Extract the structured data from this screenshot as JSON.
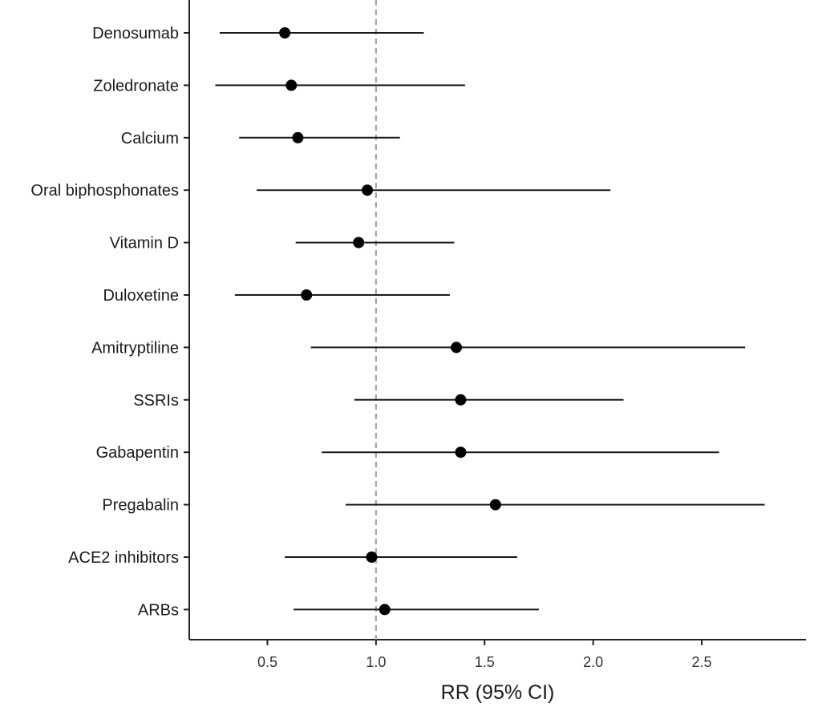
{
  "chart_data": {
    "type": "forest",
    "title": "",
    "xlabel": "RR (95% CI)",
    "ylabel": "",
    "xlim": [
      0.14,
      2.98
    ],
    "xticks": [
      0.5,
      1.0,
      1.5,
      2.0,
      2.5
    ],
    "xtick_labels": [
      "0.5",
      "1.0",
      "1.5",
      "2.0",
      "2.5"
    ],
    "reference_line": 1.0,
    "rows": [
      {
        "label": "Denosumab",
        "estimate": 0.58,
        "lower": 0.28,
        "upper": 1.22
      },
      {
        "label": "Zoledronate",
        "estimate": 0.61,
        "lower": 0.26,
        "upper": 1.41
      },
      {
        "label": "Calcium",
        "estimate": 0.64,
        "lower": 0.37,
        "upper": 1.11
      },
      {
        "label": "Oral biphosphonates",
        "estimate": 0.96,
        "lower": 0.45,
        "upper": 2.08
      },
      {
        "label": "Vitamin D",
        "estimate": 0.92,
        "lower": 0.63,
        "upper": 1.36
      },
      {
        "label": "Duloxetine",
        "estimate": 0.68,
        "lower": 0.35,
        "upper": 1.34
      },
      {
        "label": "Amitryptiline",
        "estimate": 1.37,
        "lower": 0.7,
        "upper": 2.7
      },
      {
        "label": "SSRIs",
        "estimate": 1.39,
        "lower": 0.9,
        "upper": 2.14
      },
      {
        "label": "Gabapentin",
        "estimate": 1.39,
        "lower": 0.75,
        "upper": 2.58
      },
      {
        "label": "Pregabalin",
        "estimate": 1.55,
        "lower": 0.86,
        "upper": 2.79
      },
      {
        "label": "ACE2 inhibitors",
        "estimate": 0.98,
        "lower": 0.58,
        "upper": 1.65
      },
      {
        "label": "ARBs",
        "estimate": 1.04,
        "lower": 0.62,
        "upper": 1.75
      }
    ]
  }
}
